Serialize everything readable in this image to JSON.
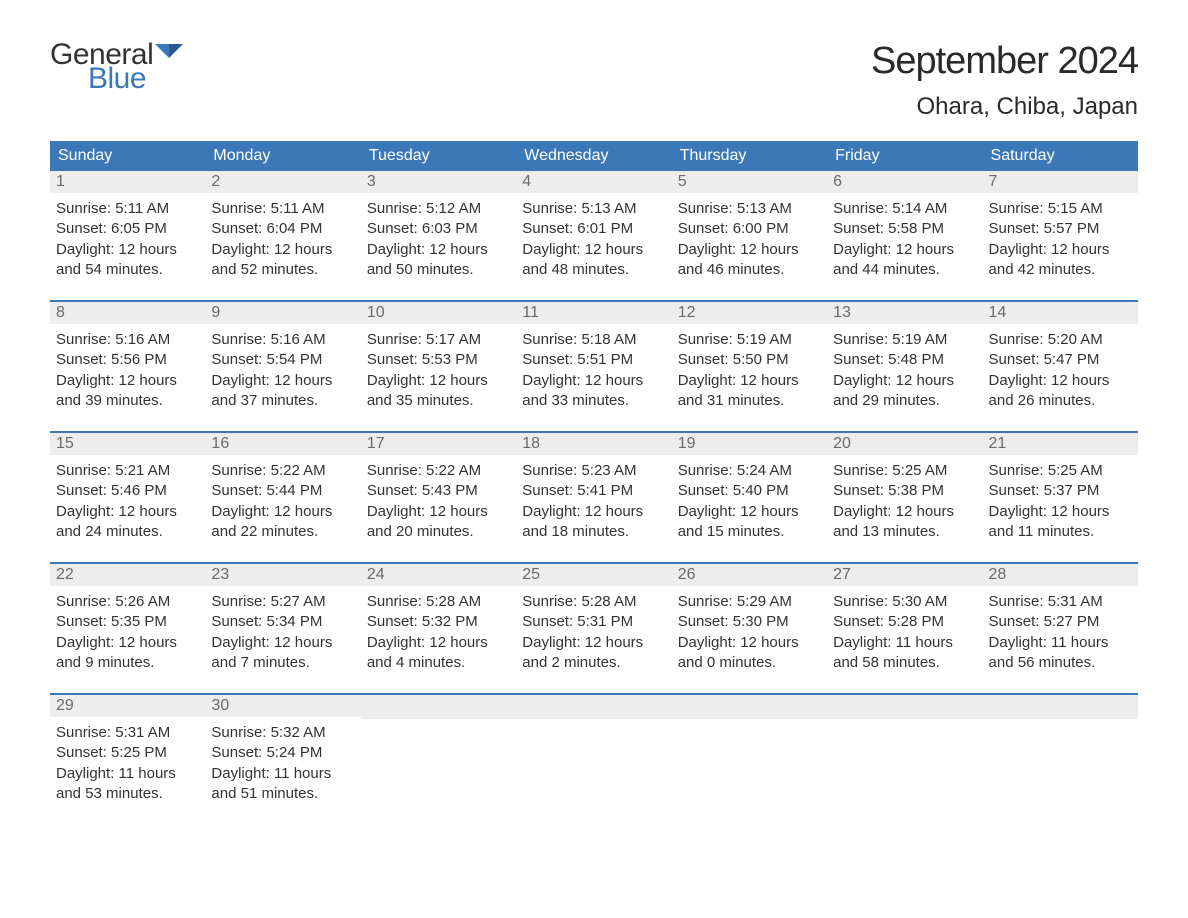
{
  "logo": {
    "text_top": "General",
    "text_bottom": "Blue",
    "color_top": "#333333",
    "color_bottom": "#3b78b8",
    "icon_color": "#3b78b8"
  },
  "title": "September 2024",
  "location": "Ohara, Chiba, Japan",
  "header_bg": "#3b78b8",
  "header_text_color": "#ffffff",
  "day_number_bg": "#ededed",
  "day_number_color": "#6a6a6a",
  "body_text_color": "#333333",
  "week_border_color": "#3b78b8",
  "weekdays": [
    "Sunday",
    "Monday",
    "Tuesday",
    "Wednesday",
    "Thursday",
    "Friday",
    "Saturday"
  ],
  "weeks": [
    [
      {
        "num": "1",
        "sunrise": "Sunrise: 5:11 AM",
        "sunset": "Sunset: 6:05 PM",
        "dl1": "Daylight: 12 hours",
        "dl2": "and 54 minutes."
      },
      {
        "num": "2",
        "sunrise": "Sunrise: 5:11 AM",
        "sunset": "Sunset: 6:04 PM",
        "dl1": "Daylight: 12 hours",
        "dl2": "and 52 minutes."
      },
      {
        "num": "3",
        "sunrise": "Sunrise: 5:12 AM",
        "sunset": "Sunset: 6:03 PM",
        "dl1": "Daylight: 12 hours",
        "dl2": "and 50 minutes."
      },
      {
        "num": "4",
        "sunrise": "Sunrise: 5:13 AM",
        "sunset": "Sunset: 6:01 PM",
        "dl1": "Daylight: 12 hours",
        "dl2": "and 48 minutes."
      },
      {
        "num": "5",
        "sunrise": "Sunrise: 5:13 AM",
        "sunset": "Sunset: 6:00 PM",
        "dl1": "Daylight: 12 hours",
        "dl2": "and 46 minutes."
      },
      {
        "num": "6",
        "sunrise": "Sunrise: 5:14 AM",
        "sunset": "Sunset: 5:58 PM",
        "dl1": "Daylight: 12 hours",
        "dl2": "and 44 minutes."
      },
      {
        "num": "7",
        "sunrise": "Sunrise: 5:15 AM",
        "sunset": "Sunset: 5:57 PM",
        "dl1": "Daylight: 12 hours",
        "dl2": "and 42 minutes."
      }
    ],
    [
      {
        "num": "8",
        "sunrise": "Sunrise: 5:16 AM",
        "sunset": "Sunset: 5:56 PM",
        "dl1": "Daylight: 12 hours",
        "dl2": "and 39 minutes."
      },
      {
        "num": "9",
        "sunrise": "Sunrise: 5:16 AM",
        "sunset": "Sunset: 5:54 PM",
        "dl1": "Daylight: 12 hours",
        "dl2": "and 37 minutes."
      },
      {
        "num": "10",
        "sunrise": "Sunrise: 5:17 AM",
        "sunset": "Sunset: 5:53 PM",
        "dl1": "Daylight: 12 hours",
        "dl2": "and 35 minutes."
      },
      {
        "num": "11",
        "sunrise": "Sunrise: 5:18 AM",
        "sunset": "Sunset: 5:51 PM",
        "dl1": "Daylight: 12 hours",
        "dl2": "and 33 minutes."
      },
      {
        "num": "12",
        "sunrise": "Sunrise: 5:19 AM",
        "sunset": "Sunset: 5:50 PM",
        "dl1": "Daylight: 12 hours",
        "dl2": "and 31 minutes."
      },
      {
        "num": "13",
        "sunrise": "Sunrise: 5:19 AM",
        "sunset": "Sunset: 5:48 PM",
        "dl1": "Daylight: 12 hours",
        "dl2": "and 29 minutes."
      },
      {
        "num": "14",
        "sunrise": "Sunrise: 5:20 AM",
        "sunset": "Sunset: 5:47 PM",
        "dl1": "Daylight: 12 hours",
        "dl2": "and 26 minutes."
      }
    ],
    [
      {
        "num": "15",
        "sunrise": "Sunrise: 5:21 AM",
        "sunset": "Sunset: 5:46 PM",
        "dl1": "Daylight: 12 hours",
        "dl2": "and 24 minutes."
      },
      {
        "num": "16",
        "sunrise": "Sunrise: 5:22 AM",
        "sunset": "Sunset: 5:44 PM",
        "dl1": "Daylight: 12 hours",
        "dl2": "and 22 minutes."
      },
      {
        "num": "17",
        "sunrise": "Sunrise: 5:22 AM",
        "sunset": "Sunset: 5:43 PM",
        "dl1": "Daylight: 12 hours",
        "dl2": "and 20 minutes."
      },
      {
        "num": "18",
        "sunrise": "Sunrise: 5:23 AM",
        "sunset": "Sunset: 5:41 PM",
        "dl1": "Daylight: 12 hours",
        "dl2": "and 18 minutes."
      },
      {
        "num": "19",
        "sunrise": "Sunrise: 5:24 AM",
        "sunset": "Sunset: 5:40 PM",
        "dl1": "Daylight: 12 hours",
        "dl2": "and 15 minutes."
      },
      {
        "num": "20",
        "sunrise": "Sunrise: 5:25 AM",
        "sunset": "Sunset: 5:38 PM",
        "dl1": "Daylight: 12 hours",
        "dl2": "and 13 minutes."
      },
      {
        "num": "21",
        "sunrise": "Sunrise: 5:25 AM",
        "sunset": "Sunset: 5:37 PM",
        "dl1": "Daylight: 12 hours",
        "dl2": "and 11 minutes."
      }
    ],
    [
      {
        "num": "22",
        "sunrise": "Sunrise: 5:26 AM",
        "sunset": "Sunset: 5:35 PM",
        "dl1": "Daylight: 12 hours",
        "dl2": "and 9 minutes."
      },
      {
        "num": "23",
        "sunrise": "Sunrise: 5:27 AM",
        "sunset": "Sunset: 5:34 PM",
        "dl1": "Daylight: 12 hours",
        "dl2": "and 7 minutes."
      },
      {
        "num": "24",
        "sunrise": "Sunrise: 5:28 AM",
        "sunset": "Sunset: 5:32 PM",
        "dl1": "Daylight: 12 hours",
        "dl2": "and 4 minutes."
      },
      {
        "num": "25",
        "sunrise": "Sunrise: 5:28 AM",
        "sunset": "Sunset: 5:31 PM",
        "dl1": "Daylight: 12 hours",
        "dl2": "and 2 minutes."
      },
      {
        "num": "26",
        "sunrise": "Sunrise: 5:29 AM",
        "sunset": "Sunset: 5:30 PM",
        "dl1": "Daylight: 12 hours",
        "dl2": "and 0 minutes."
      },
      {
        "num": "27",
        "sunrise": "Sunrise: 5:30 AM",
        "sunset": "Sunset: 5:28 PM",
        "dl1": "Daylight: 11 hours",
        "dl2": "and 58 minutes."
      },
      {
        "num": "28",
        "sunrise": "Sunrise: 5:31 AM",
        "sunset": "Sunset: 5:27 PM",
        "dl1": "Daylight: 11 hours",
        "dl2": "and 56 minutes."
      }
    ],
    [
      {
        "num": "29",
        "sunrise": "Sunrise: 5:31 AM",
        "sunset": "Sunset: 5:25 PM",
        "dl1": "Daylight: 11 hours",
        "dl2": "and 53 minutes."
      },
      {
        "num": "30",
        "sunrise": "Sunrise: 5:32 AM",
        "sunset": "Sunset: 5:24 PM",
        "dl1": "Daylight: 11 hours",
        "dl2": "and 51 minutes."
      },
      {
        "empty": true
      },
      {
        "empty": true
      },
      {
        "empty": true
      },
      {
        "empty": true
      },
      {
        "empty": true
      }
    ]
  ]
}
